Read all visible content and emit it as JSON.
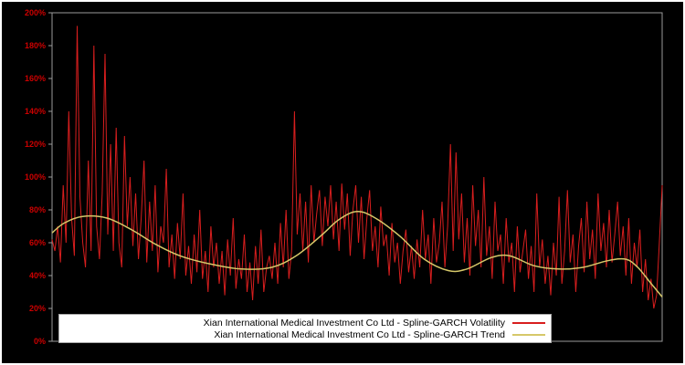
{
  "chart_data": {
    "type": "line",
    "title": "",
    "xlabel": "",
    "ylabel": "",
    "ylim": [
      0,
      200
    ],
    "ytick_step": 20,
    "ytick_labels": [
      "0%",
      "20%",
      "40%",
      "60%",
      "80%",
      "100%",
      "120%",
      "140%",
      "160%",
      "180%",
      "200%"
    ],
    "grid": "off",
    "background_color": "#000000",
    "axis_color": "#9a9a9a",
    "tick_label_color": "#cc0000",
    "legend": {
      "position": "bottom-center",
      "background": "#ffffff",
      "border_color": "#aaaaaa",
      "entries": [
        {
          "label": "Xian International Medical Investment Co Ltd - Spline-GARCH Volatility",
          "color": "#d81e1e"
        },
        {
          "label": "Xian International Medical Investment Co Ltd - Spline-GARCH Trend",
          "color": "#d6c869"
        }
      ]
    },
    "series": [
      {
        "name": "Spline-GARCH Volatility",
        "color": "#d81e1e",
        "unit": "%",
        "values": [
          62,
          55,
          70,
          48,
          95,
          60,
          140,
          75,
          52,
          192,
          88,
          60,
          45,
          110,
          55,
          180,
          70,
          50,
          90,
          175,
          65,
          120,
          55,
          130,
          60,
          45,
          125,
          70,
          100,
          58,
          90,
          50,
          75,
          110,
          48,
          85,
          55,
          95,
          42,
          70,
          60,
          105,
          45,
          65,
          38,
          72,
          50,
          90,
          40,
          58,
          35,
          65,
          42,
          80,
          38,
          55,
          30,
          70,
          45,
          60,
          35,
          55,
          28,
          62,
          40,
          75,
          32,
          50,
          38,
          65,
          30,
          48,
          25,
          58,
          35,
          68,
          30,
          45,
          52,
          38,
          60,
          35,
          72,
          45,
          80,
          38,
          55,
          140,
          65,
          90,
          55,
          85,
          48,
          95,
          60,
          78,
          92,
          58,
          88,
          70,
          95,
          62,
          85,
          55,
          96,
          68,
          90,
          52,
          80,
          95,
          60,
          88,
          50,
          75,
          92,
          55,
          70,
          45,
          82,
          58,
          65,
          40,
          72,
          48,
          60,
          35,
          55,
          68,
          42,
          58,
          38,
          62,
          45,
          80,
          50,
          65,
          35,
          75,
          48,
          60,
          85,
          45,
          70,
          120,
          55,
          115,
          62,
          90,
          48,
          75,
          40,
          95,
          58,
          80,
          45,
          100,
          52,
          70,
          38,
          85,
          55,
          65,
          35,
          75,
          48,
          60,
          30,
          70,
          42,
          55,
          68,
          38,
          58,
          30,
          90,
          45,
          62,
          35,
          52,
          28,
          60,
          40,
          88,
          35,
          55,
          92,
          48,
          65,
          30,
          58,
          75,
          42,
          85,
          50,
          68,
          38,
          90,
          55,
          72,
          45,
          80,
          48,
          65,
          85,
          52,
          70,
          40,
          75,
          35,
          60,
          45,
          68,
          30,
          50,
          25,
          38,
          20,
          28,
          60,
          95
        ]
      },
      {
        "name": "Spline-GARCH Trend",
        "color": "#d6c869",
        "unit": "%",
        "control_points": [
          [
            0.0,
            66
          ],
          [
            0.02,
            72
          ],
          [
            0.05,
            76
          ],
          [
            0.09,
            75
          ],
          [
            0.13,
            68
          ],
          [
            0.17,
            59
          ],
          [
            0.21,
            52
          ],
          [
            0.26,
            47
          ],
          [
            0.31,
            44
          ],
          [
            0.36,
            45
          ],
          [
            0.4,
            52
          ],
          [
            0.44,
            64
          ],
          [
            0.47,
            74
          ],
          [
            0.5,
            79
          ],
          [
            0.53,
            75
          ],
          [
            0.57,
            64
          ],
          [
            0.61,
            50
          ],
          [
            0.65,
            43
          ],
          [
            0.68,
            44
          ],
          [
            0.72,
            51
          ],
          [
            0.75,
            52
          ],
          [
            0.79,
            46
          ],
          [
            0.83,
            44
          ],
          [
            0.87,
            45
          ],
          [
            0.91,
            49
          ],
          [
            0.94,
            50
          ],
          [
            0.96,
            45
          ],
          [
            0.98,
            36
          ],
          [
            1.0,
            27
          ]
        ]
      }
    ]
  }
}
